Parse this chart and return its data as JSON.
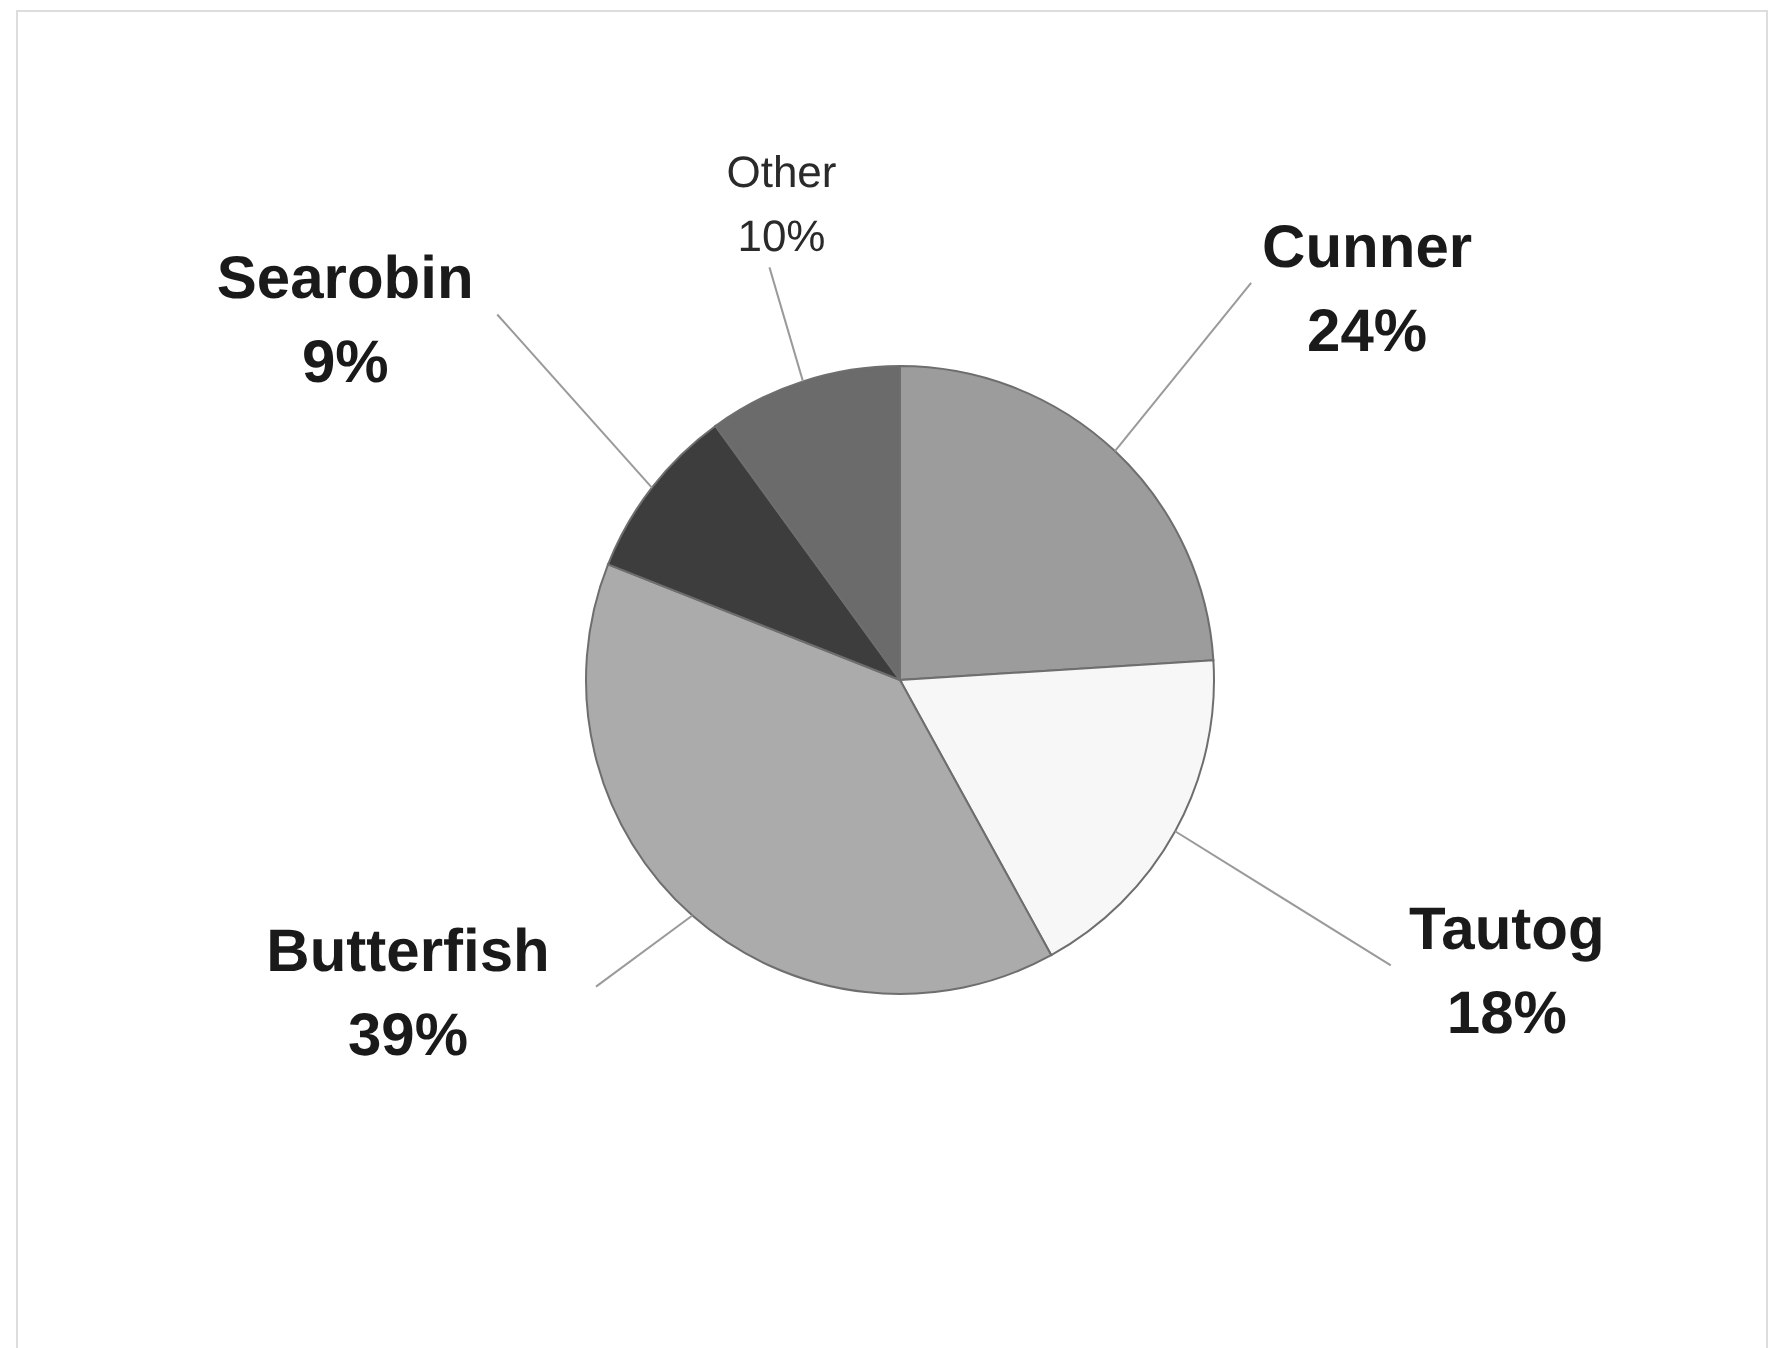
{
  "chart_data": {
    "type": "pie",
    "categories": [
      "Cunner",
      "Tautog",
      "Butterfish",
      "Searobin",
      "Other"
    ],
    "values": [
      24,
      18,
      39,
      9,
      10
    ],
    "value_labels": [
      "24%",
      "18%",
      "39%",
      "9%",
      "10%"
    ],
    "colors": [
      "#9c9c9c",
      "#f7f7f7",
      "#ababab",
      "#3d3d3d",
      "#6b6b6b"
    ]
  }
}
